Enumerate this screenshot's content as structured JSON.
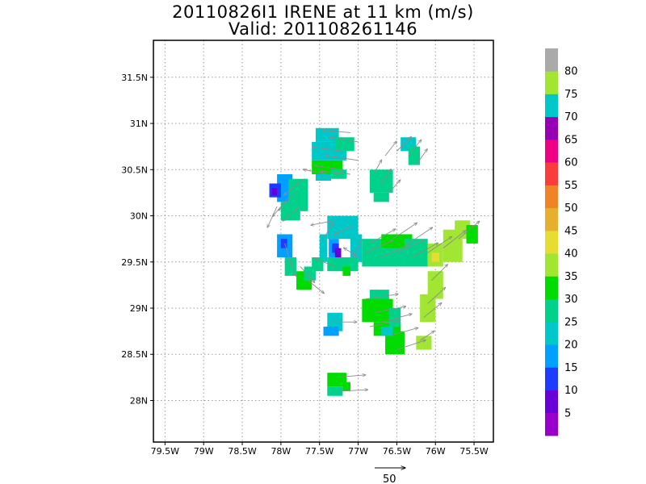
{
  "title": {
    "line1": "20110826I1 IRENE at 11 km (m/s)",
    "line2": "Valid: 201108261146"
  },
  "axes": {
    "lon_labels": [
      "79.5W",
      "79W",
      "78.5W",
      "78W",
      "77.5W",
      "77W",
      "76.5W",
      "76W",
      "75.5W"
    ],
    "lon_values": [
      -79.5,
      -79,
      -78.5,
      -78,
      -77.5,
      -77,
      -76.5,
      -76,
      -75.5
    ],
    "lat_labels": [
      "28N",
      "28.5N",
      "29N",
      "29.5N",
      "30N",
      "30.5N",
      "31N",
      "31.5N"
    ],
    "lat_values": [
      28,
      28.5,
      29,
      29.5,
      30,
      30.5,
      31,
      31.5
    ],
    "lon_range": [
      -79.65,
      -75.25
    ],
    "lat_range": [
      27.55,
      31.9
    ],
    "grid": true,
    "grid_style": "dotted"
  },
  "colorbar": {
    "labels": [
      "5",
      "10",
      "15",
      "20",
      "25",
      "30",
      "35",
      "40",
      "45",
      "50",
      "55",
      "60",
      "65",
      "70",
      "75",
      "80"
    ],
    "colors": [
      "#9900cc",
      "#6a00d8",
      "#1e3cff",
      "#00a0ff",
      "#00c8c8",
      "#00d28c",
      "#00dc00",
      "#a0e632",
      "#e6dc32",
      "#e6af2d",
      "#f08228",
      "#fa3c3c",
      "#f00082",
      "#9600b4",
      "#00c8c8",
      "#a0e632",
      "#aaaaaa"
    ]
  },
  "scale_vector": {
    "label": "50"
  },
  "colors": {
    "grid": "#9a9a9a",
    "vector": "#8c8c8c",
    "frame": "#000000"
  }
}
